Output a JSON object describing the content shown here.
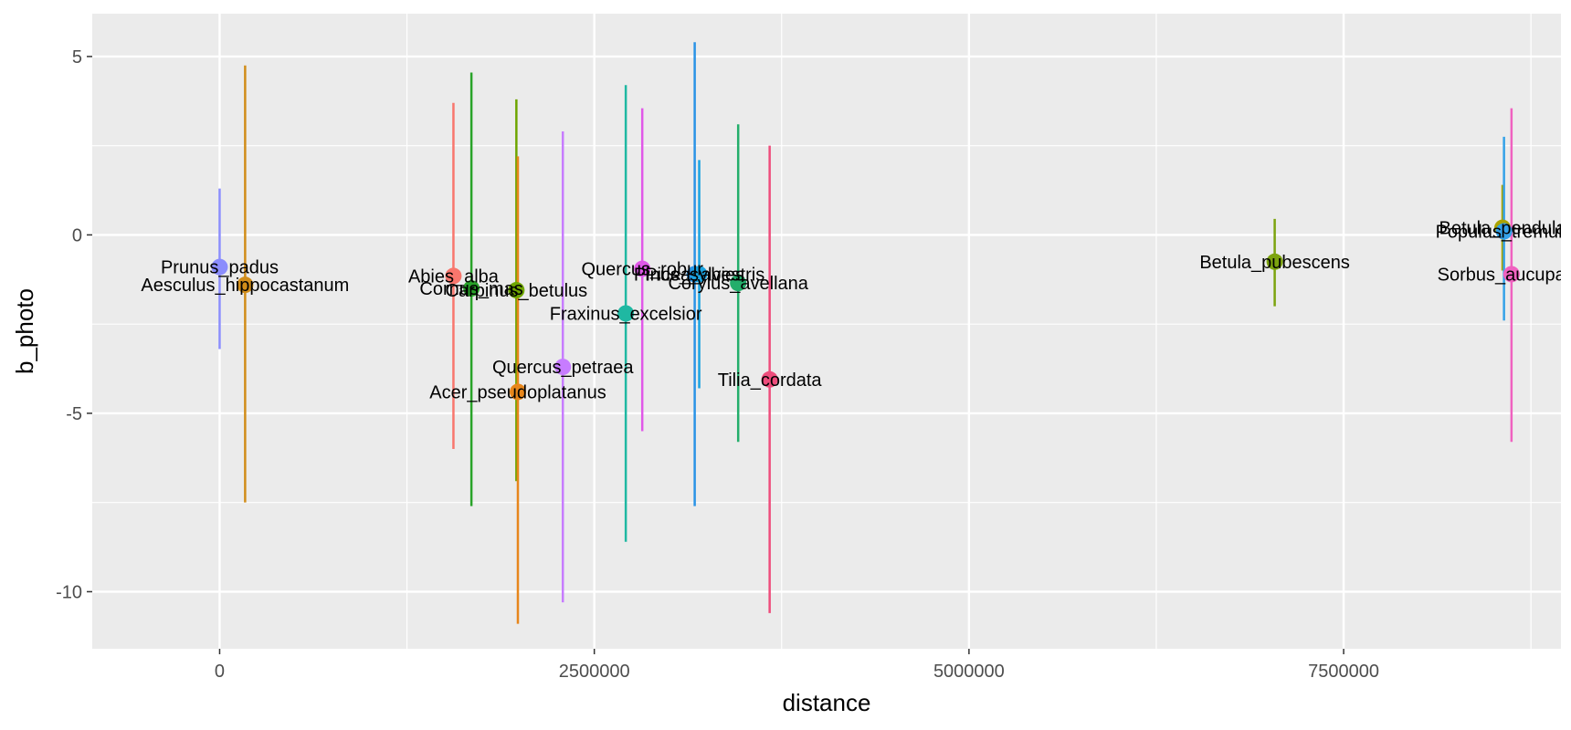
{
  "chart_data": {
    "type": "scatter",
    "title": "",
    "xlabel": "distance",
    "ylabel": "b_photo",
    "xlim": [
      -850000,
      8950000
    ],
    "ylim": [
      -11.6,
      6.2
    ],
    "x_ticks": [
      0,
      2500000,
      5000000,
      7500000
    ],
    "x_tick_labels": [
      "0",
      "2500000",
      "5000000",
      "7500000"
    ],
    "y_ticks": [
      5,
      0,
      -5,
      -10
    ],
    "y_tick_labels": [
      "5",
      "0",
      "-5",
      "-10"
    ],
    "grid": true,
    "legend": "none",
    "error_bars": true,
    "points": [
      {
        "label": "Prunus_padus",
        "x": 0,
        "y": -0.9,
        "ymin": -3.2,
        "ymax": 1.3,
        "color": "#8B8DFC"
      },
      {
        "label": "Aesculus_hippocastanum",
        "x": 170000,
        "y": -1.4,
        "ymin": -7.5,
        "ymax": 4.75,
        "color": "#D18D1A"
      },
      {
        "label": "Abies_alba",
        "x": 1560000,
        "y": -1.15,
        "ymin": -6.0,
        "ymax": 3.7,
        "color": "#F8766D"
      },
      {
        "label": "Cornus_mas",
        "x": 1680000,
        "y": -1.5,
        "ymin": -7.6,
        "ymax": 4.55,
        "color": "#29A329"
      },
      {
        "label": "Carpinus_betulus",
        "x": 1980000,
        "y": -1.55,
        "ymin": -6.9,
        "ymax": 3.8,
        "color": "#6EA500"
      },
      {
        "label": "Acer_pseudoplatanus",
        "x": 1990000,
        "y": -4.4,
        "ymin": -10.9,
        "ymax": 2.2,
        "color": "#E7861B"
      },
      {
        "label": "Quercus_petraea",
        "x": 2290000,
        "y": -3.7,
        "ymin": -10.3,
        "ymax": 2.9,
        "color": "#C77CFF"
      },
      {
        "label": "Fraxinus_excelsior",
        "x": 2710000,
        "y": -2.2,
        "ymin": -8.6,
        "ymax": 4.2,
        "color": "#1FB8A2"
      },
      {
        "label": "Quercus_robur",
        "x": 2820000,
        "y": -0.95,
        "ymin": -5.5,
        "ymax": 3.55,
        "color": "#E058E8"
      },
      {
        "label": "Picea_abies",
        "x": 3170000,
        "y": -1.1,
        "ymin": -7.6,
        "ymax": 5.4,
        "color": "#2A93E6"
      },
      {
        "label": "Pinus_sylvestris",
        "x": 3200000,
        "y": -1.1,
        "ymin": -4.3,
        "ymax": 2.1,
        "color": "#1AA3E0"
      },
      {
        "label": "Corylus_avellana",
        "x": 3460000,
        "y": -1.35,
        "ymin": -5.8,
        "ymax": 3.1,
        "color": "#23AE6B"
      },
      {
        "label": "Tilia_cordata",
        "x": 3670000,
        "y": -4.05,
        "ymin": -10.6,
        "ymax": 2.5,
        "color": "#EE4D7C"
      },
      {
        "label": "Betula_pubescens",
        "x": 7040000,
        "y": -0.75,
        "ymin": -2.0,
        "ymax": 0.45,
        "color": "#7CA30F"
      },
      {
        "label": "Betula_pendula",
        "x": 8560000,
        "y": 0.2,
        "ymin": -1.0,
        "ymax": 1.4,
        "color": "#ABA300"
      },
      {
        "label": "Populus_tremula",
        "x": 8570000,
        "y": 0.1,
        "ymin": -2.4,
        "ymax": 2.75,
        "color": "#35A2E8"
      },
      {
        "label": "Sorbus_aucuparia",
        "x": 8620000,
        "y": -1.1,
        "ymin": -5.8,
        "ymax": 3.55,
        "color": "#F062C0"
      }
    ]
  }
}
